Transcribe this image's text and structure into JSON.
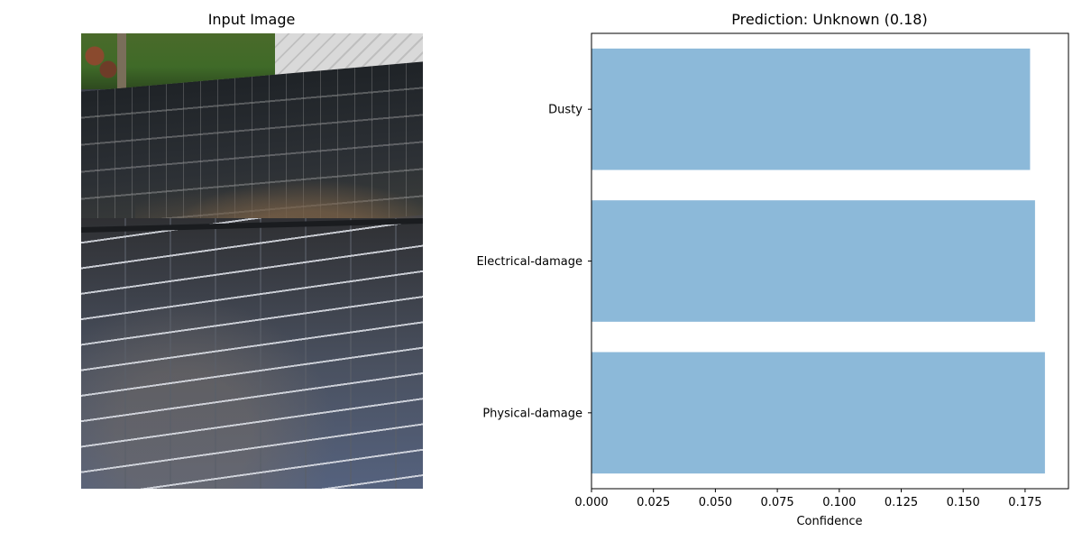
{
  "left_panel": {
    "title": "Input Image"
  },
  "chart_data": {
    "type": "bar",
    "orientation": "horizontal",
    "title": "Prediction: Unknown (0.18)",
    "xlabel": "Confidence",
    "ylabel": "",
    "categories": [
      "Dusty",
      "Electrical-damage",
      "Physical-damage"
    ],
    "values": [
      0.177,
      0.179,
      0.183
    ],
    "xlim": [
      0.0,
      0.1925
    ],
    "xticks": [
      0.0,
      0.025,
      0.05,
      0.075,
      0.1,
      0.125,
      0.15,
      0.175
    ],
    "xtick_labels": [
      "0.000",
      "0.025",
      "0.050",
      "0.075",
      "0.100",
      "0.125",
      "0.150",
      "0.175"
    ],
    "bar_color": "#8cb9d9",
    "grid": false,
    "legend": "none"
  }
}
